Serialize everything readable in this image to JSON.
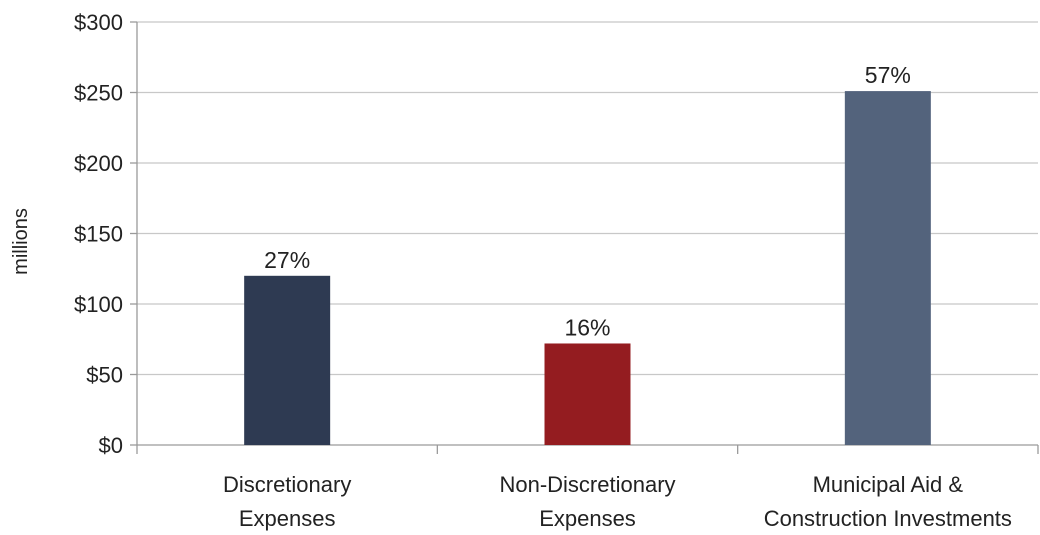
{
  "chart_data": {
    "type": "bar",
    "title": "",
    "xlabel": "",
    "ylabel": "millions",
    "ylim": [
      0,
      300
    ],
    "yticks": [
      0,
      50,
      100,
      150,
      200,
      250,
      300
    ],
    "ytick_labels": [
      "$0",
      "$50",
      "$100",
      "$150",
      "$200",
      "$250",
      "$300"
    ],
    "categories": [
      [
        "Discretionary",
        "Expenses"
      ],
      [
        "Non-Discretionary",
        "Expenses"
      ],
      [
        "Municipal Aid &",
        "Construction Investments"
      ]
    ],
    "values": [
      120,
      72,
      251
    ],
    "data_labels": [
      "27%",
      "16%",
      "57%"
    ],
    "colors": [
      "#2e3a52",
      "#941c20",
      "#53637c"
    ],
    "grid": true,
    "legend": "none"
  }
}
